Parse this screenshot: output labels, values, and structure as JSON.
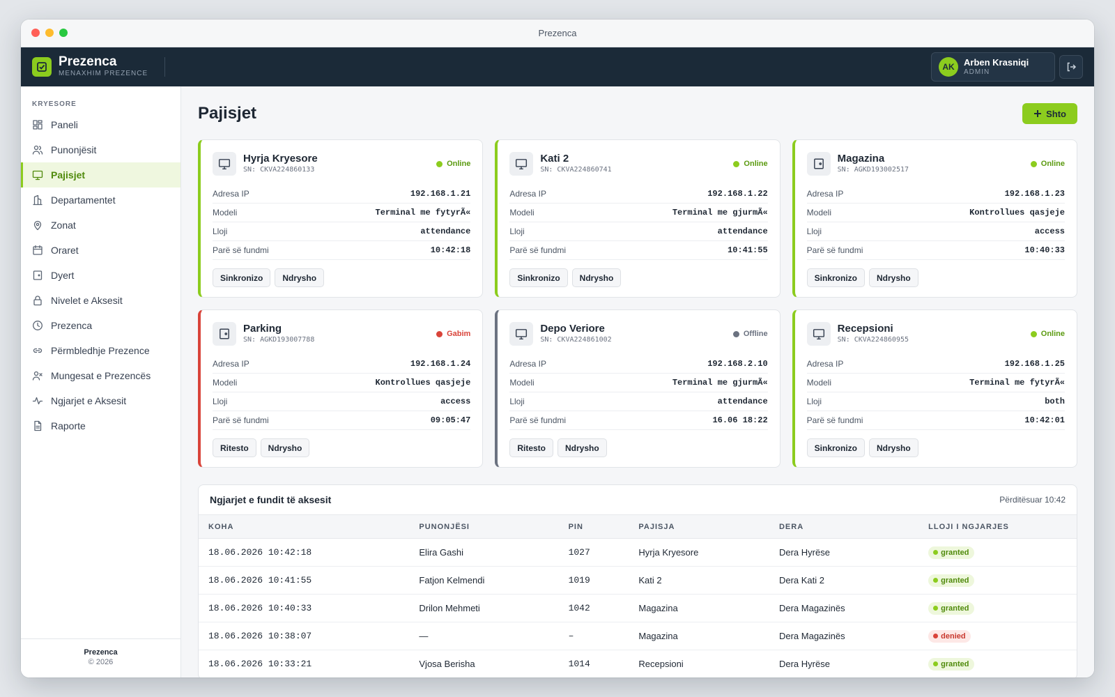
{
  "window": {
    "title": "Prezenca"
  },
  "header": {
    "brand_name": "Prezenca",
    "brand_sub": "MENAXHIM PREZENCE",
    "user_initials": "AK",
    "user_name": "Arben Krasniqi",
    "user_role": "ADMIN",
    "accent": "#8ccc1e",
    "bg": "#1b2a38"
  },
  "sidebar": {
    "section": "KRYESORE",
    "items": [
      {
        "label": "Paneli",
        "icon": "dashboard-icon"
      },
      {
        "label": "Punonjësit",
        "icon": "users-icon"
      },
      {
        "label": "Pajisjet",
        "icon": "monitor-icon",
        "active": true
      },
      {
        "label": "Departamentet",
        "icon": "building-icon"
      },
      {
        "label": "Zonat",
        "icon": "map-pin-icon"
      },
      {
        "label": "Oraret",
        "icon": "calendar-icon"
      },
      {
        "label": "Dyert",
        "icon": "door-icon"
      },
      {
        "label": "Nivelet e Aksesit",
        "icon": "lock-icon"
      },
      {
        "label": "Prezenca",
        "icon": "clock-icon"
      },
      {
        "label": "Përmbledhje Prezence",
        "icon": "link-icon"
      },
      {
        "label": "Mungesat e Prezencës",
        "icon": "user-x-icon"
      },
      {
        "label": "Ngjarjet e Aksesit",
        "icon": "activity-icon"
      },
      {
        "label": "Raporte",
        "icon": "file-icon"
      }
    ],
    "footer_name": "Prezenca",
    "footer_copy": "© 2026"
  },
  "page": {
    "title": "Pajisjet",
    "add_label": "Shto"
  },
  "device_labels": {
    "ip": "Adresa IP",
    "model": "Modeli",
    "type": "Lloji",
    "last_seen": "Parë së fundmi"
  },
  "devices": [
    {
      "name": "Hyrja Kryesore",
      "sn": "SN: CKVA224860133",
      "status": "Online",
      "ip": "192.168.1.21",
      "model": "Terminal me fytyrÃ«",
      "type": "attendance",
      "last_seen": "10:42:18",
      "action": "Sinkronizo",
      "edit": "Ndrysho"
    },
    {
      "name": "Kati 2",
      "sn": "SN: CKVA224860741",
      "status": "Online",
      "ip": "192.168.1.22",
      "model": "Terminal me gjurmÃ«",
      "type": "attendance",
      "last_seen": "10:41:55",
      "action": "Sinkronizo",
      "edit": "Ndrysho"
    },
    {
      "name": "Magazina",
      "sn": "SN: AGKD193002517",
      "status": "Online",
      "ip": "192.168.1.23",
      "model": "Kontrollues qasjeje",
      "type": "access",
      "last_seen": "10:40:33",
      "action": "Sinkronizo",
      "edit": "Ndrysho"
    },
    {
      "name": "Parking",
      "sn": "SN: AGKD193007788",
      "status": "Gabim",
      "ip": "192.168.1.24",
      "model": "Kontrollues qasjeje",
      "type": "access",
      "last_seen": "09:05:47",
      "action": "Ritesto",
      "edit": "Ndrysho"
    },
    {
      "name": "Depo Veriore",
      "sn": "SN: CKVA224861002",
      "status": "Offline",
      "ip": "192.168.2.10",
      "model": "Terminal me gjurmÃ«",
      "type": "attendance",
      "last_seen": "16.06 18:22",
      "action": "Ritesto",
      "edit": "Ndrysho"
    },
    {
      "name": "Recepsioni",
      "sn": "SN: CKVA224860955",
      "status": "Online",
      "ip": "192.168.1.25",
      "model": "Terminal me fytyrÃ«",
      "type": "both",
      "last_seen": "10:42:01",
      "action": "Sinkronizo",
      "edit": "Ndrysho"
    }
  ],
  "events": {
    "title": "Ngjarjet e fundit të aksesit",
    "updated": "Përditësuar 10:42",
    "columns": [
      "KOHA",
      "PUNONJËSI",
      "PIN",
      "PAJISJA",
      "DERA",
      "LLOJI I NGJARJES"
    ],
    "rows": [
      [
        "18.06.2026 10:42:18",
        "Elira Gashi",
        "1027",
        "Hyrja Kryesore",
        "Dera Hyrëse",
        "granted"
      ],
      [
        "18.06.2026 10:41:55",
        "Fatjon Kelmendi",
        "1019",
        "Kati 2",
        "Dera Kati 2",
        "granted"
      ],
      [
        "18.06.2026 10:40:33",
        "Drilon Mehmeti",
        "1042",
        "Magazina",
        "Dera Magazinës",
        "granted"
      ],
      [
        "18.06.2026 10:38:07",
        "—",
        "–",
        "Magazina",
        "Dera Magazinës",
        "denied"
      ],
      [
        "18.06.2026 10:33:21",
        "Vjosa Berisha",
        "1014",
        "Recepsioni",
        "Dera Hyrëse",
        "granted"
      ]
    ]
  }
}
